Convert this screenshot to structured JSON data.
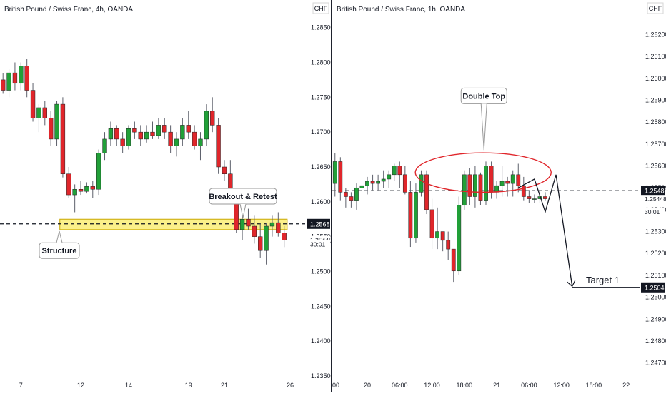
{
  "chart_data": [
    {
      "type": "candlestick",
      "title": "British Pound / Swiss Franc, 4h, OANDA",
      "currency": "CHF",
      "ylim": [
        1.235,
        1.2865
      ],
      "yticks": [
        "1.28500",
        "1.28000",
        "1.27500",
        "1.27000",
        "1.26500",
        "1.26000",
        "1.25500",
        "1.25000",
        "1.24500",
        "1.24000",
        "1.23500"
      ],
      "xticks": [
        {
          "label": "7",
          "bar": 3
        },
        {
          "label": "12",
          "bar": 13
        },
        {
          "label": "14",
          "bar": 21
        },
        {
          "label": "19",
          "bar": 31
        },
        {
          "label": "21",
          "bar": 37
        },
        {
          "label": "26",
          "bar": 48
        }
      ],
      "bars_visible": 51,
      "candles": [
        [
          1.2775,
          1.2785,
          1.2755,
          1.276
        ],
        [
          1.276,
          1.279,
          1.275,
          1.2785
        ],
        [
          1.2785,
          1.28,
          1.276,
          1.277
        ],
        [
          1.277,
          1.28,
          1.276,
          1.2795
        ],
        [
          1.2795,
          1.2805,
          1.275,
          1.276
        ],
        [
          1.276,
          1.277,
          1.2715,
          1.272
        ],
        [
          1.272,
          1.274,
          1.27,
          1.2735
        ],
        [
          1.2735,
          1.2745,
          1.271,
          1.272
        ],
        [
          1.272,
          1.273,
          1.268,
          1.269
        ],
        [
          1.269,
          1.2745,
          1.268,
          1.274
        ],
        [
          1.274,
          1.275,
          1.2635,
          1.264
        ],
        [
          1.264,
          1.265,
          1.2605,
          1.261
        ],
        [
          1.261,
          1.2625,
          1.2585,
          1.2618
        ],
        [
          1.2618,
          1.263,
          1.261,
          1.2615
        ],
        [
          1.2615,
          1.2628,
          1.2612,
          1.2622
        ],
        [
          1.2622,
          1.263,
          1.2605,
          1.2618
        ],
        [
          1.2618,
          1.2675,
          1.261,
          1.267
        ],
        [
          1.267,
          1.27,
          1.266,
          1.269
        ],
        [
          1.269,
          1.2715,
          1.268,
          1.2705
        ],
        [
          1.2705,
          1.271,
          1.268,
          1.269
        ],
        [
          1.269,
          1.27,
          1.267,
          1.268
        ],
        [
          1.268,
          1.271,
          1.2675,
          1.2705
        ],
        [
          1.2705,
          1.2715,
          1.269,
          1.27
        ],
        [
          1.27,
          1.271,
          1.268,
          1.269
        ],
        [
          1.269,
          1.271,
          1.2685,
          1.27
        ],
        [
          1.27,
          1.2715,
          1.269,
          1.2695
        ],
        [
          1.2695,
          1.272,
          1.269,
          1.271
        ],
        [
          1.271,
          1.272,
          1.269,
          1.27
        ],
        [
          1.27,
          1.271,
          1.267,
          1.268
        ],
        [
          1.268,
          1.27,
          1.2665,
          1.269
        ],
        [
          1.269,
          1.272,
          1.268,
          1.271
        ],
        [
          1.271,
          1.273,
          1.269,
          1.27
        ],
        [
          1.27,
          1.271,
          1.2675,
          1.268
        ],
        [
          1.268,
          1.27,
          1.266,
          1.269
        ],
        [
          1.269,
          1.274,
          1.268,
          1.273
        ],
        [
          1.273,
          1.275,
          1.27,
          1.271
        ],
        [
          1.271,
          1.272,
          1.264,
          1.265
        ],
        [
          1.265,
          1.266,
          1.263,
          1.264
        ],
        [
          1.264,
          1.266,
          1.26,
          1.261
        ],
        [
          1.261,
          1.262,
          1.2555,
          1.256
        ],
        [
          1.256,
          1.258,
          1.2545,
          1.2575
        ],
        [
          1.2575,
          1.259,
          1.256,
          1.2565
        ],
        [
          1.2565,
          1.258,
          1.254,
          1.255
        ],
        [
          1.255,
          1.257,
          1.252,
          1.253
        ],
        [
          1.253,
          1.257,
          1.251,
          1.2565
        ],
        [
          1.2565,
          1.258,
          1.255,
          1.257
        ],
        [
          1.257,
          1.2585,
          1.255,
          1.2555
        ],
        [
          1.2555,
          1.2565,
          1.2535,
          1.2545
        ]
      ],
      "structure_zone": [
        1.256,
        1.2575
      ],
      "line_level": 1.25683,
      "price_labels": [
        {
          "value": 1.25683,
          "text": "1.25683",
          "style": "dark"
        },
        {
          "value": 1.25448,
          "text": "1.25448",
          "style": "small"
        },
        {
          "value": 1.2539,
          "text": "30:01",
          "style": "small"
        }
      ],
      "annotations": [
        {
          "text": "Breakout & Retest",
          "price": 1.2608
        },
        {
          "text": "Structure",
          "price": 1.253
        }
      ]
    },
    {
      "type": "candlestick",
      "title": "British Pound / Swiss Franc, 1h, OANDA",
      "currency": "CHF",
      "ylim": [
        1.2464,
        1.2628
      ],
      "yticks": [
        "1.26200",
        "1.26100",
        "1.26000",
        "1.25900",
        "1.25800",
        "1.25700",
        "1.25600",
        "1.25500",
        "1.25400",
        "1.25300",
        "1.25200",
        "1.25100",
        "1.25000",
        "1.24900",
        "1.24800",
        "1.24700"
      ],
      "xticks": [
        {
          "label": ":00",
          "bar": 0
        },
        {
          "label": "20",
          "bar": 6
        },
        {
          "label": "06:00",
          "bar": 12
        },
        {
          "label": "12:00",
          "bar": 18
        },
        {
          "label": "18:00",
          "bar": 24
        },
        {
          "label": "21",
          "bar": 30
        },
        {
          "label": "06:00",
          "bar": 36
        },
        {
          "label": "12:00",
          "bar": 42
        },
        {
          "label": "18:00",
          "bar": 48
        },
        {
          "label": "22",
          "bar": 54
        }
      ],
      "bars_visible": 57,
      "candles": [
        [
          1.2552,
          1.2566,
          1.2546,
          1.2562
        ],
        [
          1.2562,
          1.2564,
          1.2544,
          1.2548
        ],
        [
          1.2548,
          1.255,
          1.2541,
          1.2546
        ],
        [
          1.2546,
          1.2548,
          1.2541,
          1.2544
        ],
        [
          1.2544,
          1.2552,
          1.254,
          1.255
        ],
        [
          1.255,
          1.2554,
          1.2546,
          1.2551
        ],
        [
          1.2551,
          1.2555,
          1.2547,
          1.2553
        ],
        [
          1.2553,
          1.2556,
          1.2549,
          1.2552
        ],
        [
          1.2552,
          1.2556,
          1.2549,
          1.2553
        ],
        [
          1.2553,
          1.2558,
          1.255,
          1.2554
        ],
        [
          1.2554,
          1.2558,
          1.255,
          1.2556
        ],
        [
          1.2556,
          1.2561,
          1.2553,
          1.256
        ],
        [
          1.256,
          1.2562,
          1.255,
          1.2556
        ],
        [
          1.2556,
          1.256,
          1.2547,
          1.2548
        ],
        [
          1.2548,
          1.2553,
          1.2523,
          1.2527
        ],
        [
          1.2527,
          1.2552,
          1.2525,
          1.2548
        ],
        [
          1.2548,
          1.2558,
          1.2546,
          1.2556
        ],
        [
          1.2556,
          1.2558,
          1.2538,
          1.254
        ],
        [
          1.254,
          1.2545,
          1.2522,
          1.2527
        ],
        [
          1.2527,
          1.2541,
          1.2522,
          1.253
        ],
        [
          1.253,
          1.253,
          1.2521,
          1.2526
        ],
        [
          1.2526,
          1.253,
          1.2517,
          1.2522
        ],
        [
          1.2522,
          1.2522,
          1.2507,
          1.2512
        ],
        [
          1.2512,
          1.2546,
          1.251,
          1.2542
        ],
        [
          1.2542,
          1.2558,
          1.254,
          1.2556
        ],
        [
          1.2556,
          1.2559,
          1.2542,
          1.2546
        ],
        [
          1.2546,
          1.256,
          1.2541,
          1.2556
        ],
        [
          1.2556,
          1.2557,
          1.2542,
          1.2544
        ],
        [
          1.2544,
          1.2562,
          1.2542,
          1.256
        ],
        [
          1.256,
          1.2562,
          1.2545,
          1.2548
        ],
        [
          1.2548,
          1.2553,
          1.2545,
          1.2551
        ],
        [
          1.2551,
          1.256,
          1.2546,
          1.2553
        ],
        [
          1.2553,
          1.2555,
          1.2546,
          1.2552
        ],
        [
          1.2552,
          1.2558,
          1.2546,
          1.2556
        ],
        [
          1.2556,
          1.2561,
          1.2548,
          1.2551
        ],
        [
          1.2551,
          1.2555,
          1.2544,
          1.2546
        ],
        [
          1.2546,
          1.2549,
          1.2543,
          1.2545
        ],
        [
          1.2545,
          1.2547,
          1.2543,
          1.2545
        ],
        [
          1.2545,
          1.2548,
          1.2543,
          1.2546
        ],
        [
          1.2546,
          1.2548,
          1.2544,
          1.2545
        ]
      ],
      "double_top_circle": {
        "bar_center": 27.5,
        "price_center": 1.2557,
        "bar_radius": 7,
        "price_radius": 0.0009
      },
      "line_level": 1.25487,
      "target_level": 1.25045,
      "projection_path": [
        [
          34,
          1.255
        ],
        [
          37,
          1.2554
        ],
        [
          39,
          1.2539
        ],
        [
          41,
          1.2556
        ],
        [
          44,
          1.2505
        ]
      ],
      "price_labels": [
        {
          "value": 1.25487,
          "text": "1.25487",
          "style": "dark"
        },
        {
          "value": 1.25448,
          "text": "1.25448",
          "style": "small"
        },
        {
          "value": 1.2539,
          "text": "30:01",
          "style": "small"
        },
        {
          "value": 1.25045,
          "text": "1.25045",
          "style": "dark"
        }
      ],
      "annotations": [
        {
          "text": "Double Top",
          "price": 1.2592
        },
        {
          "text": "Target 1",
          "price": 1.2506
        }
      ]
    }
  ]
}
